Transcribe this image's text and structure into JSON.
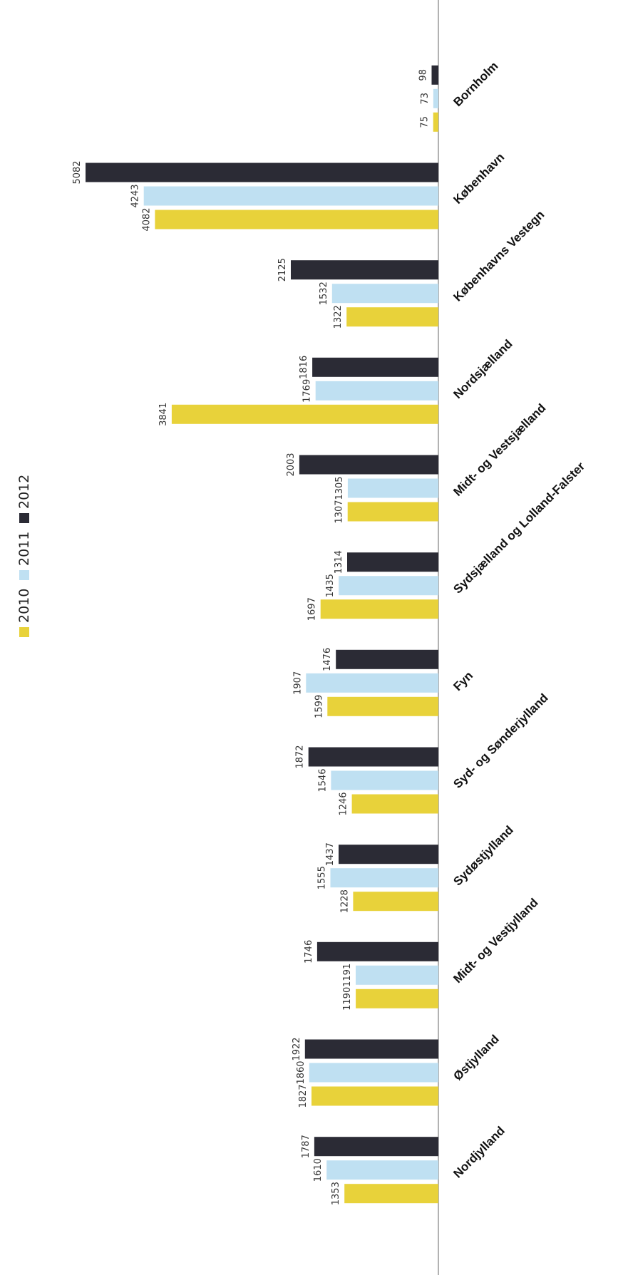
{
  "chart_data": {
    "type": "bar",
    "orientation": "horizontal",
    "categories": [
      "Bornholm",
      "København",
      "Københavns Vestegn",
      "Nordsjælland",
      "Midt- og Vestsjælland",
      "Sydsjælland og Lolland-Falster",
      "Fyn",
      "Syd- og Sønderjylland",
      "Sydøstjylland",
      "Midt- og Vestjylland",
      "Østjylland",
      "Nordjylland"
    ],
    "series": [
      {
        "name": "2010",
        "color": "#e8d23a",
        "values": [
          75,
          4082,
          1322,
          3841,
          1307,
          1697,
          1599,
          1246,
          1228,
          1190,
          1827,
          1353
        ]
      },
      {
        "name": "2011",
        "color": "#bfe0f2",
        "values": [
          73,
          4243,
          1532,
          1769,
          1305,
          1435,
          1907,
          1546,
          1555,
          1191,
          1860,
          1610
        ]
      },
      {
        "name": "2012",
        "color": "#2b2b35",
        "values": [
          98,
          5082,
          2125,
          1816,
          2003,
          1314,
          1476,
          1872,
          1437,
          1746,
          1922,
          1787
        ]
      }
    ],
    "xlim": [
      0,
      5300
    ],
    "legend_position": "top-left",
    "grid": false
  }
}
